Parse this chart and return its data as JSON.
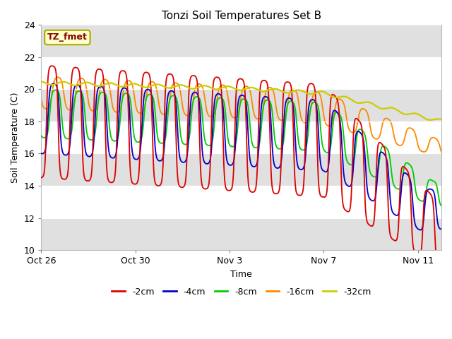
{
  "title": "Tonzi Soil Temperatures Set B",
  "xlabel": "Time",
  "ylabel": "Soil Temperature (C)",
  "ylim": [
    10,
    24
  ],
  "yticks": [
    10,
    12,
    14,
    16,
    18,
    20,
    22,
    24
  ],
  "annotation_text": "TZ_fmet",
  "legend_labels": [
    "-2cm",
    "-4cm",
    "-8cm",
    "-16cm",
    "-32cm"
  ],
  "line_colors": [
    "#dd0000",
    "#0000cc",
    "#00cc00",
    "#ff8800",
    "#cccc00"
  ],
  "background_color": "#ffffff",
  "axes_bg_color": "#ffffff",
  "gray_band_ranges": [
    [
      10,
      12
    ],
    [
      14,
      16
    ],
    [
      18,
      20
    ],
    [
      22,
      24
    ]
  ],
  "gray_color": "#e0e0e0",
  "n_days": 17,
  "xtick_positions": [
    0,
    4,
    8,
    12,
    16
  ],
  "xtick_labels": [
    "Oct 26",
    "Oct 30",
    "Nov 3",
    "Nov 7",
    "Nov 11"
  ]
}
